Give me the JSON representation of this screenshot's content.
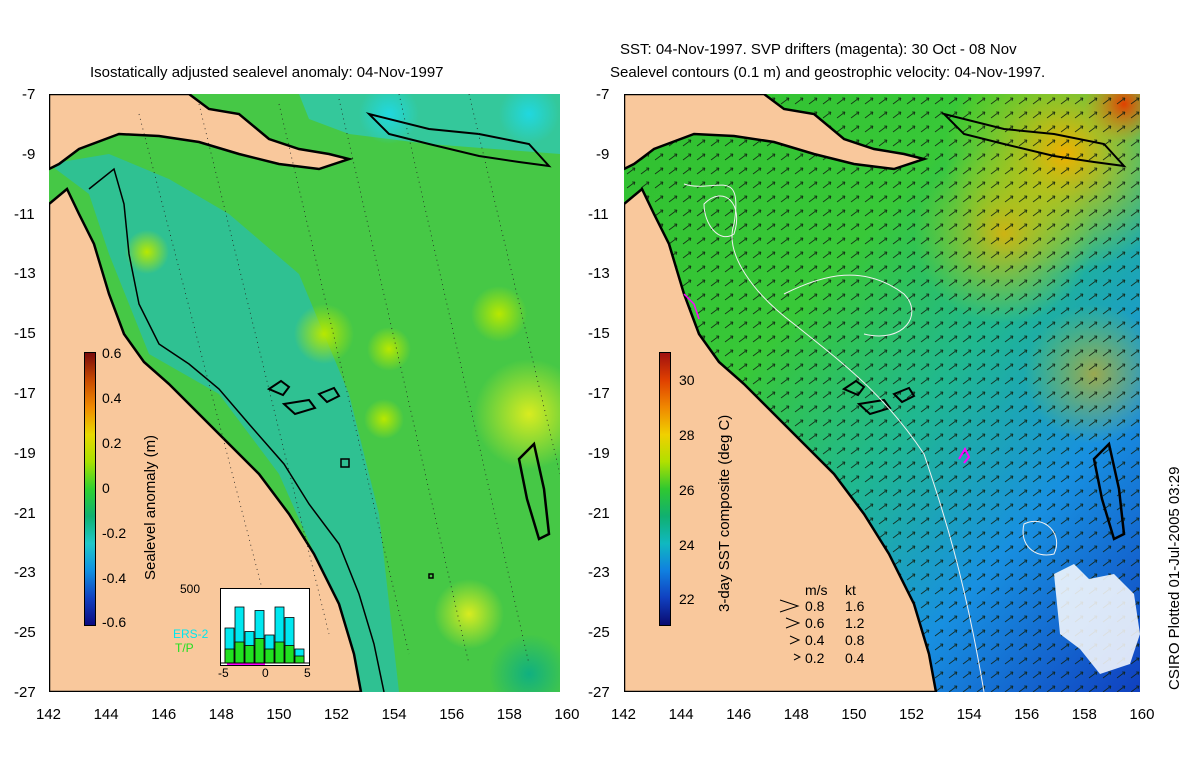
{
  "left_panel": {
    "title": "Isostatically adjusted sealevel anomaly: 04-Nov-1997",
    "colorbar": {
      "label": "Sealevel anomaly (m)",
      "ticks": [
        "0.6",
        "0.4",
        "0.2",
        "0",
        "-0.2",
        "-0.4",
        "-0.6"
      ],
      "colors": [
        "#7a0a0a",
        "#c84a00",
        "#f08a00",
        "#e8d800",
        "#a8e000",
        "#30d030",
        "#10b070",
        "#20c8c8",
        "#1090e0",
        "#1040c0",
        "#0a0a80"
      ]
    },
    "histogram": {
      "ymax_label": "500",
      "legend": [
        "ERS-2",
        "T/P"
      ],
      "x_ticks": [
        "-5",
        "0",
        "5"
      ],
      "ers2_color": "#00e8f0",
      "tp_color": "#20e020"
    }
  },
  "right_panel": {
    "title_line1": "SST: 04-Nov-1997. SVP drifters (magenta): 30 Oct - 08 Nov",
    "title_line2": "Sealevel contours (0.1 m) and geostrophic velocity: 04-Nov-1997.",
    "colorbar": {
      "label": "3-day SST composite (deg C)",
      "ticks": [
        "30",
        "28",
        "26",
        "24",
        "22"
      ],
      "colors": [
        "#a01010",
        "#e04000",
        "#f08800",
        "#f0d000",
        "#b0e000",
        "#30c830",
        "#10b070",
        "#10b8c0",
        "#1080e0",
        "#1040c0",
        "#0a0a70"
      ]
    },
    "velocity_legend": {
      "header_ms": "m/s",
      "header_kt": "kt",
      "rows": [
        {
          "ms": "0.8",
          "kt": "1.6"
        },
        {
          "ms": "0.6",
          "kt": "1.2"
        },
        {
          "ms": "0.4",
          "kt": "0.8"
        },
        {
          "ms": "0.2",
          "kt": "0.4"
        }
      ]
    }
  },
  "axes": {
    "y_ticks": [
      "-7",
      "-9",
      "-11",
      "-13",
      "-15",
      "-17",
      "-19",
      "-21",
      "-23",
      "-25",
      "-27"
    ],
    "x_ticks": [
      "142",
      "144",
      "146",
      "148",
      "150",
      "152",
      "154",
      "156",
      "158",
      "160"
    ]
  },
  "credit": "CSIRO Plotted 01-Jul-2005 03:29",
  "colors": {
    "land": "#f9c89c",
    "ocean_green": "#40c840",
    "shelf": "#30c8a0"
  }
}
